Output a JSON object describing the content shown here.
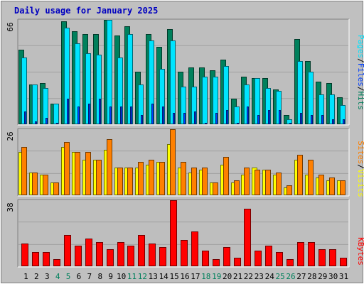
{
  "title": "Daily usage for January 2025",
  "colors": {
    "background": "#C0C0C0",
    "plot_bg": "#BEBEBE",
    "title": "#0000C0",
    "hits": "#00805C",
    "files": "#00E4FF",
    "pages": "#0040FF",
    "visits": "#FFFF00",
    "sites": "#FF8000",
    "kbytes": "#FF0000",
    "weekend_label": "#00805C"
  },
  "chart_data": [
    {
      "type": "bar",
      "panel": "hits-files-pages",
      "ymax_label": "66",
      "ylim": [
        0,
        66
      ],
      "axis_label_parts": [
        "Pages",
        "Files",
        "Hits"
      ],
      "categories": [
        "1",
        "2",
        "3",
        "4",
        "5",
        "6",
        "7",
        "8",
        "9",
        "10",
        "11",
        "12",
        "13",
        "14",
        "15",
        "16",
        "17",
        "18",
        "19",
        "20",
        "21",
        "22",
        "23",
        "24",
        "25",
        "26",
        "27",
        "28",
        "29",
        "30",
        "31"
      ],
      "weekend_days": [
        4,
        5,
        11,
        12,
        18,
        19,
        25,
        26
      ],
      "series": [
        {
          "name": "Hits",
          "values": [
            47,
            25,
            26,
            13,
            65,
            59,
            57,
            57,
            66,
            56,
            62,
            33,
            57,
            49,
            60,
            33,
            36,
            36,
            34,
            41,
            16,
            30,
            29,
            29,
            22,
            6,
            54,
            40,
            27,
            26,
            17
          ]
        },
        {
          "name": "Files",
          "values": [
            42,
            25,
            23,
            13,
            61,
            51,
            45,
            44,
            66,
            42,
            57,
            25,
            53,
            35,
            53,
            24,
            24,
            30,
            30,
            37,
            11,
            25,
            29,
            23,
            21,
            3,
            40,
            33,
            19,
            19,
            12
          ]
        },
        {
          "name": "Pages",
          "values": [
            8,
            2,
            4,
            1,
            16,
            11,
            13,
            16,
            11,
            11,
            11,
            6,
            13,
            11,
            7,
            7,
            8,
            1,
            7,
            9,
            1,
            11,
            6,
            9,
            9,
            1,
            7,
            6,
            6,
            3,
            3
          ]
        }
      ]
    },
    {
      "type": "bar",
      "panel": "visits-sites",
      "ymax_label": "26",
      "ylim": [
        0,
        26
      ],
      "axis_label_parts": [
        "Sites",
        "Visits"
      ],
      "categories": [
        "1",
        "2",
        "3",
        "4",
        "5",
        "6",
        "7",
        "8",
        "9",
        "10",
        "11",
        "12",
        "13",
        "14",
        "15",
        "16",
        "17",
        "18",
        "19",
        "20",
        "21",
        "22",
        "23",
        "24",
        "25",
        "26",
        "27",
        "28",
        "29",
        "30",
        "31"
      ],
      "weekend_days": [
        4,
        5,
        11,
        12,
        18,
        19,
        25,
        26
      ],
      "series": [
        {
          "name": "Visits",
          "values": [
            17,
            9,
            8,
            5,
            19,
            17,
            14,
            14,
            18,
            11,
            11,
            11,
            12,
            13,
            20,
            11,
            9,
            10,
            5,
            12,
            5,
            8,
            11,
            10,
            8,
            3,
            14,
            8,
            7,
            6,
            6
          ]
        },
        {
          "name": "Sites",
          "values": [
            19,
            9,
            8,
            5,
            21,
            17,
            17,
            14,
            22,
            11,
            11,
            13,
            14,
            13,
            26,
            13,
            11,
            11,
            5,
            15,
            6,
            11,
            10,
            10,
            9,
            4,
            16,
            14,
            8,
            7,
            6
          ]
        }
      ]
    },
    {
      "type": "bar",
      "panel": "kbytes",
      "ymax_label": "38",
      "ylim": [
        0,
        38
      ],
      "axis_label_parts": [
        "KBytes"
      ],
      "categories": [
        "1",
        "2",
        "3",
        "4",
        "5",
        "6",
        "7",
        "8",
        "9",
        "10",
        "11",
        "12",
        "13",
        "14",
        "15",
        "16",
        "17",
        "18",
        "19",
        "20",
        "21",
        "22",
        "23",
        "24",
        "25",
        "26",
        "27",
        "28",
        "29",
        "30",
        "31"
      ],
      "weekend_days": [
        4,
        5,
        11,
        12,
        18,
        19,
        25,
        26
      ],
      "series": [
        {
          "name": "KBytes",
          "values": [
            13,
            8,
            8,
            4,
            18,
            12,
            16,
            14,
            10,
            14,
            12,
            18,
            13,
            11,
            38,
            15,
            20,
            9,
            4,
            11,
            5,
            33,
            9,
            12,
            8,
            4,
            14,
            14,
            10,
            10,
            5
          ]
        }
      ]
    }
  ]
}
